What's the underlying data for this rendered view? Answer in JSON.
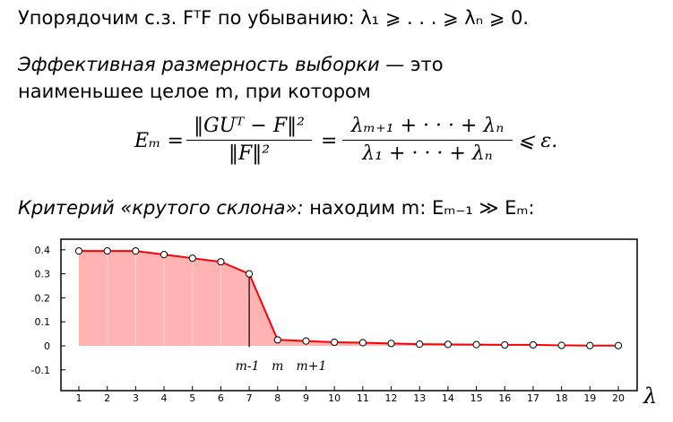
{
  "text": {
    "line1": "Упорядочим с.з. FᵀF по убыванию: λ₁ ⩾ . . . ⩾ λₙ ⩾ 0.",
    "line2_italic": "Эффективная размерность выборки",
    "line2_rest": " — это",
    "line3": "наименьшее целое m, при котором",
    "line5_italic": "Критерий «крутого склона»:",
    "line5_rest": " находим m:  Eₘ₋₁ ≫ Eₘ:"
  },
  "formula": {
    "lhs": "Eₘ =",
    "frac1_num": "‖GUᵀ − F‖²",
    "frac1_den": "‖F‖²",
    "eq": "=",
    "frac2_num": "λₘ₊₁ + · · · + λₙ",
    "frac2_den": "λ₁ + · · · + λₙ",
    "rhs": "⩽ ε."
  },
  "chart_data": {
    "type": "area",
    "x": [
      1,
      2,
      3,
      4,
      5,
      6,
      7,
      8,
      9,
      10,
      11,
      12,
      13,
      14,
      15,
      16,
      17,
      18,
      19,
      20
    ],
    "y": [
      0.395,
      0.395,
      0.395,
      0.38,
      0.365,
      0.35,
      0.3,
      0.025,
      0.02,
      0.015,
      0.013,
      0.01,
      0.007,
      0.006,
      0.005,
      0.004,
      0.004,
      0.002,
      0.001,
      0.001
    ],
    "shaded_until": 7,
    "ylim": [
      -0.15,
      0.45
    ],
    "xlim": [
      0.5,
      20.6
    ],
    "yticks": [
      0.4,
      0.3,
      0.2,
      0.1,
      0,
      -0.1
    ],
    "ytick_labels": [
      "0.4",
      "0.3",
      "0.2",
      "0.1",
      "0",
      "-0.1"
    ],
    "xtick_labels": [
      "1",
      "2",
      "3",
      "4",
      "5",
      "6",
      "7",
      "8",
      "9",
      "10",
      "11",
      "12",
      "13",
      "14",
      "15",
      "16",
      "17",
      "18",
      "19",
      "20"
    ],
    "axis_symbol": "λ",
    "annotations": [
      {
        "text": "m-1",
        "x": 7
      },
      {
        "text": "m",
        "x": 8
      },
      {
        "text": "m+1",
        "x": 9
      }
    ],
    "colors": {
      "line": "#ff0000",
      "fill": "#ffb3b3",
      "marker_fill": "#ffffff"
    }
  }
}
